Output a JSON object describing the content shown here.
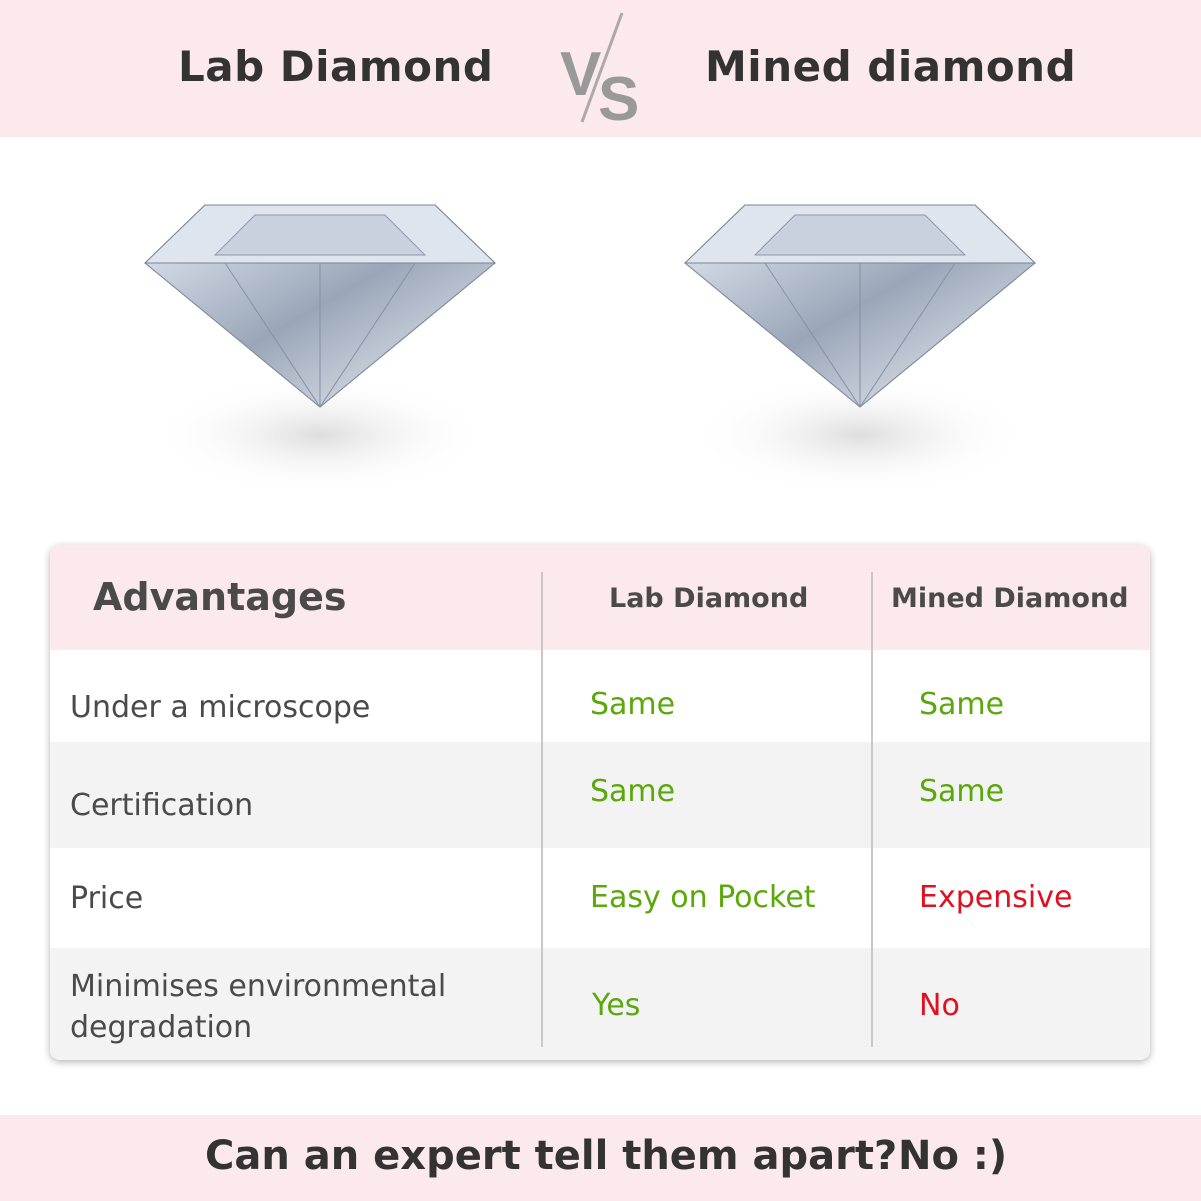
{
  "header": {
    "left_title": "Lab Diamond",
    "vs": "VS",
    "right_title": "Mined diamond"
  },
  "table": {
    "headers": [
      "Advantages",
      "Lab Diamond",
      "Mined Diamond"
    ],
    "rows": [
      {
        "label": "Under a microscope",
        "lab": "Same",
        "mined": "Same"
      },
      {
        "label": "Certification",
        "lab": "Same",
        "mined": "Same"
      },
      {
        "label": "Price",
        "lab": "Easy on Pocket",
        "mined": "Expensive"
      },
      {
        "label": "Minimises environmental degradation",
        "lab": "Yes",
        "mined": "No"
      }
    ]
  },
  "footer": {
    "question": "Can an expert tell them apart?",
    "answer": "No :)"
  },
  "colors": {
    "pink": "#fce9ed",
    "positive": "#5aa80a",
    "negative": "#e01020",
    "text": "#4a4a4a"
  }
}
